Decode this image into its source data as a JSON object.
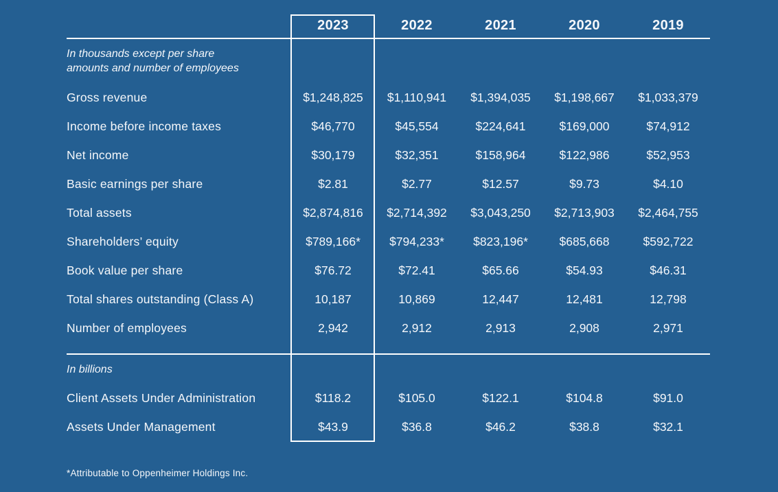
{
  "colors": {
    "background": "#245F92",
    "text": "#F5F7FA",
    "line": "#FFFFFF",
    "highlight_border": "#FFFFFF"
  },
  "table": {
    "highlighted_year": "2023",
    "years": [
      "2023",
      "2022",
      "2021",
      "2020",
      "2019"
    ],
    "unit_note_line1": "In thousands except per share",
    "unit_note_line2": "amounts and number of employees",
    "section1_rows": [
      {
        "label": "Gross revenue",
        "values": [
          "$1,248,825",
          "$1,110,941",
          "$1,394,035",
          "$1,198,667",
          "$1,033,379"
        ]
      },
      {
        "label": "Income before income taxes",
        "values": [
          "$46,770",
          "$45,554",
          "$224,641",
          "$169,000",
          "$74,912"
        ]
      },
      {
        "label": "Net income",
        "values": [
          "$30,179",
          "$32,351",
          "$158,964",
          "$122,986",
          "$52,953"
        ]
      },
      {
        "label": "Basic earnings per share",
        "values": [
          "$2.81",
          "$2.77",
          "$12.57",
          "$9.73",
          "$4.10"
        ]
      },
      {
        "label": "Total assets",
        "values": [
          "$2,874,816",
          "$2,714,392",
          "$3,043,250",
          "$2,713,903",
          "$2,464,755"
        ]
      },
      {
        "label": "Shareholders’ equity",
        "values": [
          "$789,166*",
          "$794,233*",
          "$823,196*",
          "$685,668",
          "$592,722"
        ]
      },
      {
        "label": "Book value per share",
        "values": [
          "$76.72",
          "$72.41",
          "$65.66",
          "$54.93",
          "$46.31"
        ]
      },
      {
        "label": "Total shares outstanding (Class A)",
        "values": [
          "10,187",
          "10,869",
          "12,447",
          "12,481",
          "12,798"
        ]
      },
      {
        "label": "Number of employees",
        "values": [
          "2,942",
          "2,912",
          "2,913",
          "2,908",
          "2,971"
        ]
      }
    ],
    "section2_note": "In billions",
    "section2_rows": [
      {
        "label": "Client Assets Under Administration",
        "values": [
          "$118.2",
          "$105.0",
          "$122.1",
          "$104.8",
          "$91.0"
        ]
      },
      {
        "label": "Assets Under Management",
        "values": [
          "$43.9",
          "$36.8",
          "$46.2",
          "$38.8",
          "$32.1"
        ]
      }
    ],
    "footnote": "*Attributable to Oppenheimer Holdings Inc."
  }
}
